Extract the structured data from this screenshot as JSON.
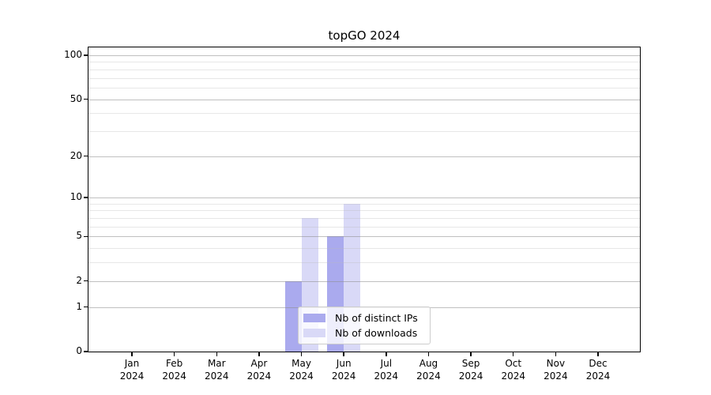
{
  "chart_data": {
    "type": "bar",
    "title": "topGO 2024",
    "categories": [
      "Jan",
      "Feb",
      "Mar",
      "Apr",
      "May",
      "Jun",
      "Jul",
      "Aug",
      "Sep",
      "Oct",
      "Nov",
      "Dec"
    ],
    "year_label": "2024",
    "series": [
      {
        "name": "Nb of distinct IPs",
        "color": "#aaaaee",
        "values": [
          0,
          0,
          0,
          0,
          2,
          5,
          0,
          0,
          0,
          0,
          0,
          0
        ]
      },
      {
        "name": "Nb of downloads",
        "color": "#d9d9f7",
        "values": [
          0,
          0,
          0,
          0,
          7,
          9,
          0,
          0,
          0,
          0,
          0,
          0
        ]
      }
    ],
    "xlabel": "",
    "ylabel": "",
    "yscale": "log1p",
    "ylim": [
      0,
      113
    ],
    "y_major_ticks": [
      0,
      1,
      2,
      5,
      10,
      20,
      50,
      100
    ],
    "y_minor_ticks": [
      3,
      4,
      6,
      7,
      8,
      9,
      30,
      40,
      60,
      70,
      80,
      90
    ],
    "grid": "on",
    "legend_position": "bottom-center",
    "colors": {
      "background": "#ffffff",
      "axis": "#000000",
      "grid_major": "rgba(140,140,140,0.55)",
      "grid_minor": "rgba(185,185,185,0.35)"
    }
  }
}
